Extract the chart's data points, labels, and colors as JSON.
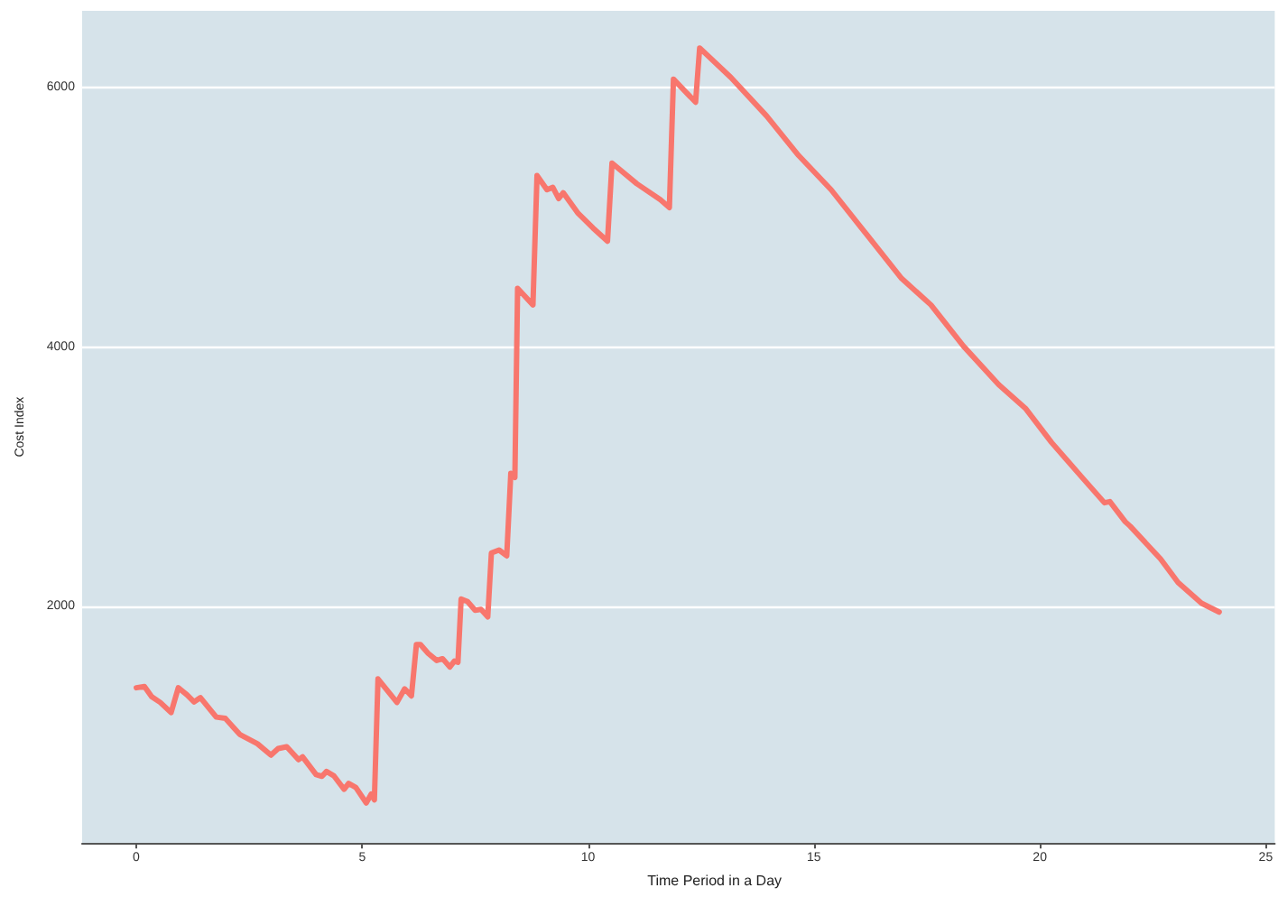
{
  "chart_data": {
    "type": "line",
    "xlabel": "Time Period in a Day",
    "ylabel": "Cost Index",
    "x": [
      0,
      0.18,
      0.34,
      0.53,
      0.77,
      0.93,
      1.12,
      1.28,
      1.42,
      1.77,
      1.97,
      2.29,
      2.68,
      2.98,
      3.14,
      3.33,
      3.59,
      3.68,
      3.98,
      4.11,
      4.21,
      4.37,
      4.6,
      4.7,
      4.86,
      5.09,
      5.2,
      5.27,
      5.35,
      5.77,
      5.94,
      6.09,
      6.2,
      6.29,
      6.46,
      6.65,
      6.78,
      6.94,
      7.04,
      7.12,
      7.19,
      7.33,
      7.5,
      7.63,
      7.78,
      7.86,
      8.03,
      8.2,
      8.29,
      8.38,
      8.44,
      8.78,
      8.87,
      9.09,
      9.22,
      9.35,
      9.45,
      9.78,
      10.11,
      10.43,
      10.53,
      11.08,
      11.6,
      11.8,
      11.89,
      12.38,
      12.47,
      13.16,
      13.95,
      14.66,
      15.38,
      16.16,
      16.94,
      17.59,
      18.31,
      19.09,
      19.68,
      20.26,
      20.91,
      21.43,
      21.55,
      21.89,
      22.0,
      22.67,
      23.06,
      23.58,
      23.97
    ],
    "series": [
      {
        "color": "#f8766d",
        "values": [
          1376,
          1386,
          1308,
          1263,
          1185,
          1376,
          1322,
          1267,
          1300,
          1150,
          1140,
          1017,
          945,
          857,
          908,
          922,
          822,
          844,
          707,
          694,
          731,
          699,
          594,
          639,
          608,
          489,
          557,
          512,
          1444,
          1263,
          1368,
          1313,
          1709,
          1709,
          1641,
          1586,
          1600,
          1536,
          1581,
          1572,
          2059,
          2041,
          1973,
          1980,
          1922,
          2414,
          2437,
          2392,
          3028,
          2996,
          4453,
          4325,
          5321,
          5212,
          5230,
          5144,
          5189,
          5030,
          4917,
          4816,
          5417,
          5258,
          5135,
          5075,
          6064,
          5886,
          6304,
          6077,
          5781,
          5476,
          5212,
          4870,
          4529,
          4325,
          4007,
          3710,
          3529,
          3265,
          3006,
          2801,
          2810,
          2655,
          2620,
          2369,
          2187,
          2027,
          1959
        ]
      }
    ],
    "xlim": [
      -1.2,
      25.2
    ],
    "xticks": [
      0,
      5,
      10,
      15,
      20,
      25
    ],
    "ylim": [
      180,
      6590
    ],
    "yticks": [
      2000,
      4000,
      6000
    ],
    "grid": "y",
    "marker": "none",
    "line_style": "solid"
  }
}
